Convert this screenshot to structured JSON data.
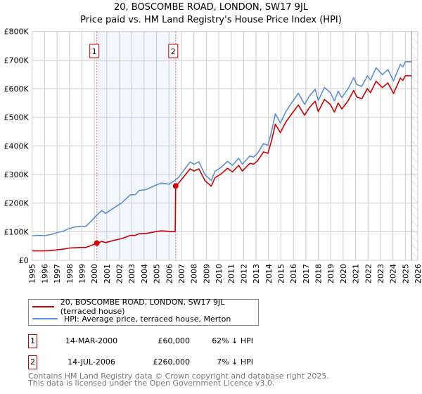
{
  "chart_data": {
    "type": "line",
    "title": "20, BOSCOMBE ROAD, LONDON, SW17 9JL",
    "subtitle": "Price paid vs. HM Land Registry's House Price Index (HPI)",
    "xlabel": "",
    "ylabel": "",
    "xlim": [
      1995,
      2026
    ],
    "ylim": [
      0,
      800000
    ],
    "x_ticks": [
      "1995",
      "1996",
      "1997",
      "1998",
      "1999",
      "2000",
      "2001",
      "2002",
      "2003",
      "2004",
      "2005",
      "2006",
      "2007",
      "2008",
      "2009",
      "2010",
      "2011",
      "2012",
      "2013",
      "2014",
      "2015",
      "2016",
      "2017",
      "2018",
      "2019",
      "2020",
      "2021",
      "2022",
      "2023",
      "2024",
      "2025",
      "2026"
    ],
    "y_ticks": [
      {
        "value": 0,
        "label": "£0"
      },
      {
        "value": 100000,
        "label": "£100K"
      },
      {
        "value": 200000,
        "label": "£200K"
      },
      {
        "value": 300000,
        "label": "£300K"
      },
      {
        "value": 400000,
        "label": "£400K"
      },
      {
        "value": 500000,
        "label": "£500K"
      },
      {
        "value": 600000,
        "label": "£600K"
      },
      {
        "value": 700000,
        "label": "£700K"
      },
      {
        "value": 800000,
        "label": "£800K"
      }
    ],
    "grid": true,
    "highlight_range": [
      2000.2,
      2006.54
    ],
    "future_hatch_from": 2025.5,
    "series": [
      {
        "name": "20, BOSCOMBE ROAD, LONDON, SW17 9JL (terraced house)",
        "color": "#cc0000",
        "points": [
          [
            1995,
            33
          ],
          [
            1995.5,
            33
          ],
          [
            1996,
            33
          ],
          [
            1996.5,
            34
          ],
          [
            1997,
            37
          ],
          [
            1997.5,
            39
          ],
          [
            1998,
            43
          ],
          [
            1998.5,
            44
          ],
          [
            1999,
            45
          ],
          [
            1999.3,
            45
          ],
          [
            1999.7,
            51
          ],
          [
            2000.2,
            60
          ],
          [
            2000.6,
            66
          ],
          [
            2000.9,
            62
          ],
          [
            2001.6,
            70
          ],
          [
            2002.2,
            76
          ],
          [
            2002.9,
            87
          ],
          [
            2003.3,
            87
          ],
          [
            2003.6,
            93
          ],
          [
            2004.2,
            94
          ],
          [
            2004.9,
            100
          ],
          [
            2005.4,
            103
          ],
          [
            2006,
            101
          ],
          [
            2006.5,
            101
          ],
          [
            2006.54,
            260
          ],
          [
            2006.8,
            271
          ],
          [
            2007.2,
            293
          ],
          [
            2007.7,
            320
          ],
          [
            2008,
            312
          ],
          [
            2008.4,
            320
          ],
          [
            2008.9,
            278
          ],
          [
            2009.4,
            259
          ],
          [
            2009.7,
            289
          ],
          [
            2010.2,
            302
          ],
          [
            2010.7,
            322
          ],
          [
            2011.1,
            309
          ],
          [
            2011.6,
            332
          ],
          [
            2011.9,
            312
          ],
          [
            2012.5,
            339
          ],
          [
            2012.8,
            336
          ],
          [
            2013.1,
            347
          ],
          [
            2013.6,
            379
          ],
          [
            2013.95,
            374
          ],
          [
            2014.25,
            419
          ],
          [
            2014.55,
            476
          ],
          [
            2014.95,
            446
          ],
          [
            2015.4,
            484
          ],
          [
            2015.9,
            514
          ],
          [
            2016.4,
            543
          ],
          [
            2016.9,
            507
          ],
          [
            2017.3,
            535
          ],
          [
            2017.75,
            556
          ],
          [
            2018,
            520
          ],
          [
            2018.5,
            562
          ],
          [
            2018.97,
            545
          ],
          [
            2019.3,
            518
          ],
          [
            2019.6,
            550
          ],
          [
            2019.9,
            529
          ],
          [
            2020.4,
            558
          ],
          [
            2020.85,
            594
          ],
          [
            2021.1,
            571
          ],
          [
            2021.5,
            565
          ],
          [
            2021.95,
            600
          ],
          [
            2022.2,
            586
          ],
          [
            2022.65,
            626
          ],
          [
            2023.15,
            604
          ],
          [
            2023.6,
            620
          ],
          [
            2024.05,
            583
          ],
          [
            2024.6,
            637
          ],
          [
            2024.8,
            629
          ],
          [
            2025,
            645
          ],
          [
            2025.5,
            645
          ]
        ]
      },
      {
        "name": "HPI: Average price, terraced house, Merton",
        "color": "#5b8fd4",
        "points": [
          [
            1995,
            86
          ],
          [
            1995.5,
            87
          ],
          [
            1996,
            86
          ],
          [
            1996.5,
            90
          ],
          [
            1997,
            97
          ],
          [
            1997.5,
            102
          ],
          [
            1998,
            112
          ],
          [
            1998.5,
            117
          ],
          [
            1999,
            119
          ],
          [
            1999.3,
            118
          ],
          [
            1999.7,
            135
          ],
          [
            2000.2,
            158
          ],
          [
            2000.6,
            174
          ],
          [
            2000.9,
            164
          ],
          [
            2001.6,
            184
          ],
          [
            2002.2,
            201
          ],
          [
            2002.9,
            229
          ],
          [
            2003.3,
            230
          ],
          [
            2003.6,
            244
          ],
          [
            2004.2,
            248
          ],
          [
            2004.9,
            262
          ],
          [
            2005.4,
            270
          ],
          [
            2006,
            266
          ],
          [
            2006.5,
            280
          ],
          [
            2006.8,
            291
          ],
          [
            2007.2,
            315
          ],
          [
            2007.7,
            344
          ],
          [
            2008,
            336
          ],
          [
            2008.4,
            344
          ],
          [
            2008.9,
            299
          ],
          [
            2009.4,
            279
          ],
          [
            2009.7,
            311
          ],
          [
            2010.2,
            325
          ],
          [
            2010.7,
            346
          ],
          [
            2011.1,
            332
          ],
          [
            2011.6,
            357
          ],
          [
            2011.9,
            336
          ],
          [
            2012.5,
            365
          ],
          [
            2012.8,
            361
          ],
          [
            2013.1,
            373
          ],
          [
            2013.6,
            408
          ],
          [
            2013.95,
            402
          ],
          [
            2014.25,
            451
          ],
          [
            2014.55,
            512
          ],
          [
            2014.95,
            480
          ],
          [
            2015.4,
            520
          ],
          [
            2015.9,
            553
          ],
          [
            2016.4,
            584
          ],
          [
            2016.9,
            545
          ],
          [
            2017.3,
            575
          ],
          [
            2017.75,
            598
          ],
          [
            2018,
            559
          ],
          [
            2018.5,
            604
          ],
          [
            2018.97,
            586
          ],
          [
            2019.3,
            557
          ],
          [
            2019.6,
            591
          ],
          [
            2019.9,
            569
          ],
          [
            2020.4,
            600
          ],
          [
            2020.85,
            639
          ],
          [
            2021.1,
            614
          ],
          [
            2021.5,
            608
          ],
          [
            2021.95,
            645
          ],
          [
            2022.2,
            630
          ],
          [
            2022.65,
            673
          ],
          [
            2023.15,
            649
          ],
          [
            2023.6,
            667
          ],
          [
            2024.05,
            627
          ],
          [
            2024.6,
            685
          ],
          [
            2024.8,
            676
          ],
          [
            2025,
            694
          ],
          [
            2025.5,
            694
          ]
        ]
      }
    ],
    "point_units": "thousands GBP",
    "sales": [
      {
        "label": "1",
        "year": 2000.2,
        "value": 60
      },
      {
        "label": "2",
        "year": 2006.54,
        "value": 260
      }
    ],
    "legend_position": "below"
  },
  "legend": {
    "property": "20, BOSCOMBE ROAD, LONDON, SW17 9JL (terraced house)",
    "hpi": "HPI: Average price, terraced house, Merton"
  },
  "sales_table": [
    {
      "num": "1",
      "date": "14-MAR-2000",
      "price": "£60,000",
      "pct": "62% ↓ HPI"
    },
    {
      "num": "2",
      "date": "14-JUL-2006",
      "price": "£260,000",
      "pct": "7% ↓ HPI"
    }
  ],
  "footer": {
    "line1": "Contains HM Land Registry data © Crown copyright and database right 2025.",
    "line2": "This data is licensed under the Open Government Licence v3.0."
  }
}
